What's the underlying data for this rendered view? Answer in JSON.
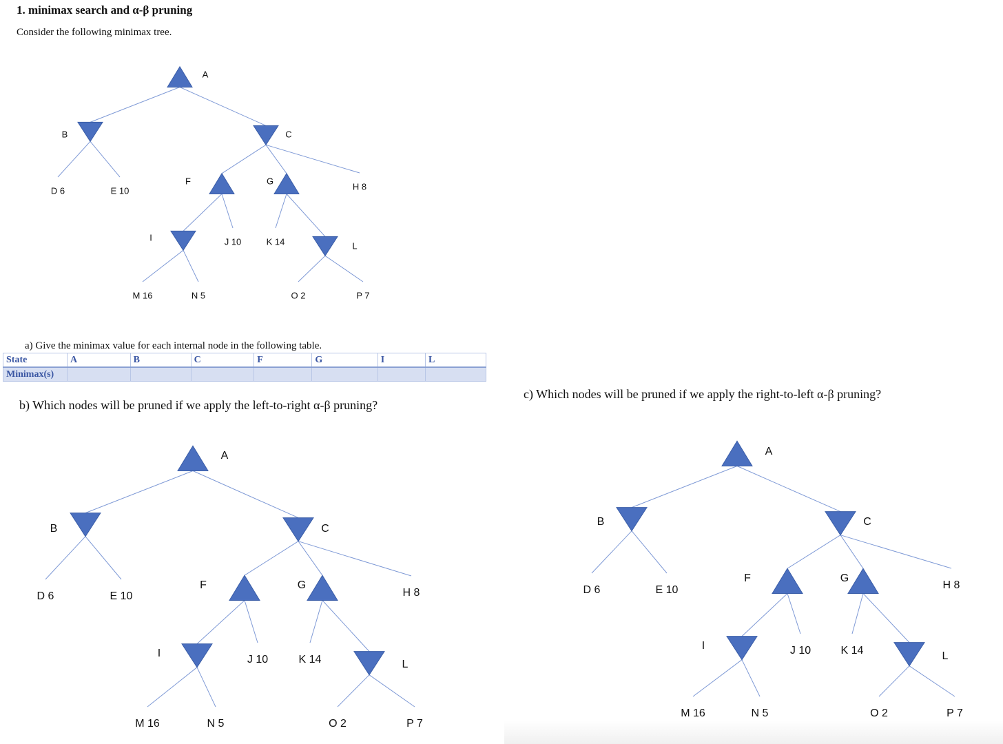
{
  "heading": "1.  minimax search and α-β pruning",
  "intro": "Consider the following minimax tree.",
  "part_a": {
    "prompt": "a)   Give the minimax value for each internal node in the following table.",
    "table": {
      "header_row": [
        "State",
        "A",
        "B",
        "C",
        "F",
        "G",
        "I",
        "L"
      ],
      "value_row": [
        "Minimax(s)",
        "",
        "",
        "",
        "",
        "",
        "",
        ""
      ]
    }
  },
  "part_b": {
    "prompt": "b)   Which nodes will be pruned if we apply the left-to-right α-β pruning?"
  },
  "part_c": {
    "prompt": "c)   Which nodes will be pruned if we apply the right-to-left α-β pruning?"
  },
  "colors": {
    "node_fill": "#4a6fbf",
    "node_stroke": "#3b5ea8",
    "edge": "#7f9ad6",
    "table_text": "#3a56a3",
    "table_shade": "#d7dff2"
  },
  "tree": {
    "nodes": [
      {
        "id": "A",
        "type": "max",
        "label": "A"
      },
      {
        "id": "B",
        "type": "min",
        "label": "B"
      },
      {
        "id": "C",
        "type": "min",
        "label": "C"
      },
      {
        "id": "D",
        "type": "leaf",
        "label": "D 6",
        "value": 6
      },
      {
        "id": "E",
        "type": "leaf",
        "label": "E 10",
        "value": 10
      },
      {
        "id": "F",
        "type": "max",
        "label": "F"
      },
      {
        "id": "G",
        "type": "max",
        "label": "G"
      },
      {
        "id": "H",
        "type": "leaf",
        "label": "H 8",
        "value": 8
      },
      {
        "id": "I",
        "type": "min",
        "label": "I"
      },
      {
        "id": "J",
        "type": "leaf",
        "label": "J 10",
        "value": 10
      },
      {
        "id": "K",
        "type": "leaf",
        "label": "K 14",
        "value": 14
      },
      {
        "id": "L",
        "type": "min",
        "label": "L"
      },
      {
        "id": "M",
        "type": "leaf",
        "label": "M 16",
        "value": 16
      },
      {
        "id": "N",
        "type": "leaf",
        "label": "N 5",
        "value": 5
      },
      {
        "id": "O",
        "type": "leaf",
        "label": "O 2",
        "value": 2
      },
      {
        "id": "P",
        "type": "leaf",
        "label": "P 7",
        "value": 7
      }
    ],
    "edges": [
      [
        "A",
        "B"
      ],
      [
        "A",
        "C"
      ],
      [
        "B",
        "D"
      ],
      [
        "B",
        "E"
      ],
      [
        "C",
        "F"
      ],
      [
        "C",
        "G"
      ],
      [
        "C",
        "H"
      ],
      [
        "F",
        "I"
      ],
      [
        "F",
        "J"
      ],
      [
        "G",
        "K"
      ],
      [
        "G",
        "L"
      ],
      [
        "I",
        "M"
      ],
      [
        "I",
        "N"
      ],
      [
        "L",
        "O"
      ],
      [
        "L",
        "P"
      ]
    ]
  }
}
